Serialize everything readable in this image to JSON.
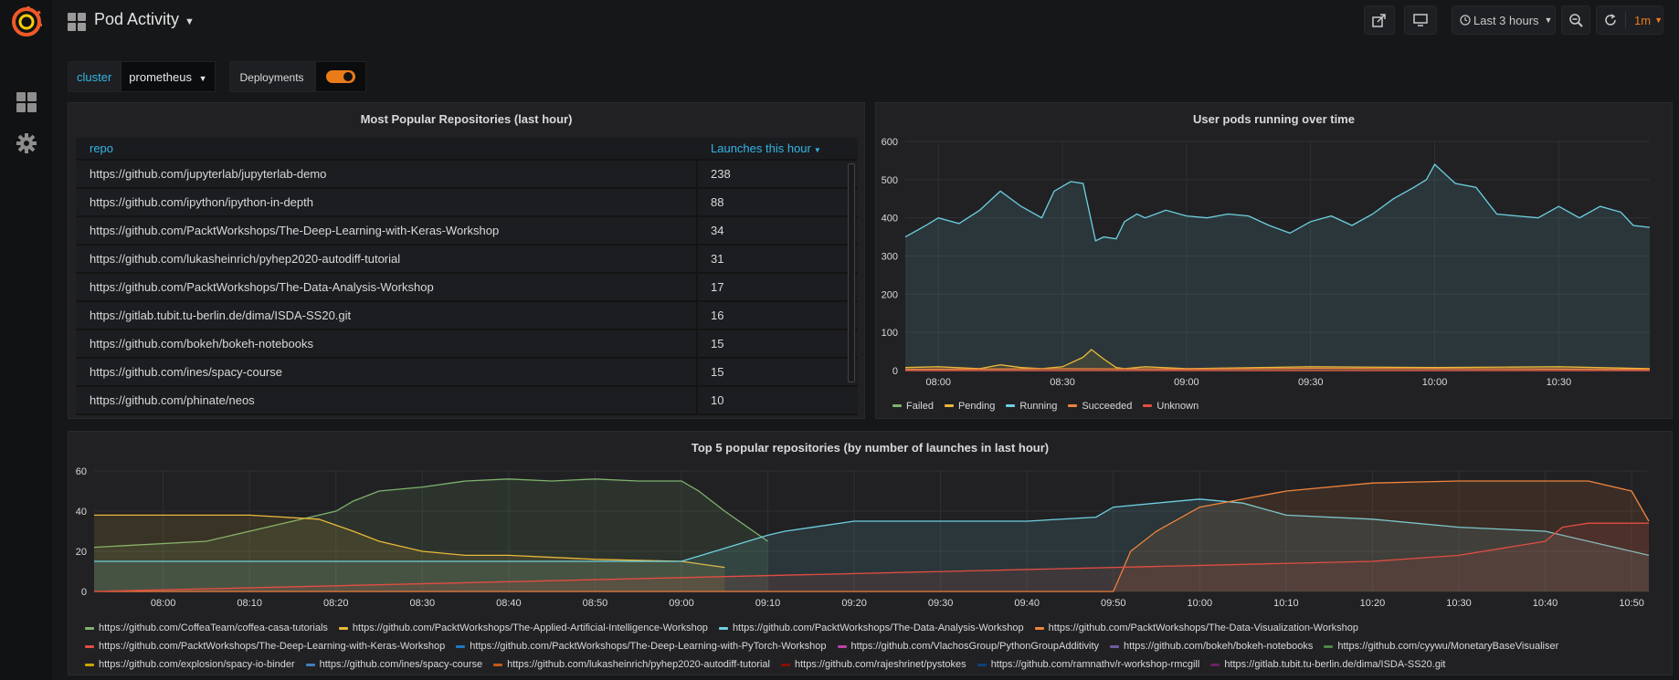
{
  "dashboard": {
    "title": "Pod Activity"
  },
  "toolbar": {
    "time_range": "Last 3 hours",
    "refresh_interval": "1m"
  },
  "variables": {
    "cluster_label": "cluster",
    "cluster_value": "prometheus",
    "deployments_label": "Deployments",
    "deployments_enabled": true
  },
  "colors": {
    "accent": "#33b5e5",
    "orange": "#eb7b18",
    "bg": "#161719",
    "panel": "#212124"
  },
  "repo_table": {
    "title": "Most Popular Repositories (last hour)",
    "col_repo": "repo",
    "col_launches": "Launches this hour",
    "rows": [
      {
        "repo": "https://github.com/jupyterlab/jupyterlab-demo",
        "launches": "238"
      },
      {
        "repo": "https://github.com/ipython/ipython-in-depth",
        "launches": "88"
      },
      {
        "repo": "https://github.com/PacktWorkshops/The-Deep-Learning-with-Keras-Workshop",
        "launches": "34"
      },
      {
        "repo": "https://github.com/lukasheinrich/pyhep2020-autodiff-tutorial",
        "launches": "31"
      },
      {
        "repo": "https://github.com/PacktWorkshops/The-Data-Analysis-Workshop",
        "launches": "17"
      },
      {
        "repo": "https://gitlab.tubit.tu-berlin.de/dima/ISDA-SS20.git",
        "launches": "16"
      },
      {
        "repo": "https://github.com/bokeh/bokeh-notebooks",
        "launches": "15"
      },
      {
        "repo": "https://github.com/ines/spacy-course",
        "launches": "15"
      },
      {
        "repo": "https://github.com/phinate/neos",
        "launches": "10"
      }
    ]
  },
  "chart_data": [
    {
      "type": "area",
      "title": "User pods running over time",
      "ylim": [
        0,
        600
      ],
      "y_ticks": [
        "600",
        "500",
        "400",
        "300",
        "200",
        "100",
        "0"
      ],
      "x_ticks": [
        "08:00",
        "08:30",
        "09:00",
        "09:30",
        "10:00",
        "10:30"
      ],
      "x_minutes": [
        0,
        30,
        60,
        90,
        120,
        150
      ],
      "x_range_minutes": [
        -8,
        172
      ],
      "legend": [
        "Failed",
        "Pending",
        "Running",
        "Succeeded",
        "Unknown"
      ],
      "series": [
        {
          "name": "Running",
          "color": "#6ed0e0",
          "x": [
            -8,
            -3,
            0,
            5,
            10,
            15,
            20,
            25,
            28,
            32,
            35,
            38,
            40,
            43,
            45,
            48,
            50,
            55,
            60,
            65,
            70,
            75,
            80,
            85,
            90,
            95,
            100,
            105,
            110,
            115,
            118,
            120,
            123,
            125,
            130,
            135,
            140,
            145,
            150,
            155,
            160,
            165,
            168,
            172
          ],
          "values": [
            350,
            380,
            400,
            385,
            420,
            470,
            430,
            400,
            470,
            495,
            490,
            340,
            350,
            345,
            390,
            410,
            400,
            420,
            405,
            400,
            410,
            405,
            380,
            360,
            390,
            405,
            380,
            410,
            450,
            480,
            500,
            540,
            510,
            490,
            480,
            410,
            405,
            400,
            430,
            400,
            430,
            415,
            380,
            375
          ]
        },
        {
          "name": "Pending",
          "color": "#eab839",
          "x": [
            -8,
            0,
            10,
            15,
            20,
            25,
            30,
            35,
            37,
            40,
            43,
            45,
            50,
            60,
            90,
            120,
            150,
            172
          ],
          "values": [
            8,
            10,
            5,
            15,
            8,
            5,
            10,
            35,
            55,
            30,
            8,
            5,
            10,
            5,
            10,
            8,
            10,
            5
          ]
        },
        {
          "name": "Succeeded",
          "color": "#ef843c",
          "x": [
            -8,
            30,
            60,
            90,
            120,
            150,
            172
          ],
          "values": [
            3,
            5,
            4,
            6,
            5,
            4,
            3
          ]
        },
        {
          "name": "Failed",
          "color": "#7eb26d",
          "x": [
            -8,
            172
          ],
          "values": [
            0,
            0
          ]
        },
        {
          "name": "Unknown",
          "color": "#e24d42",
          "x": [
            -8,
            172
          ],
          "values": [
            0,
            0
          ]
        }
      ]
    },
    {
      "type": "area",
      "title": "Top 5 popular repositories (by number of launches in last hour)",
      "ylim": [
        0,
        60
      ],
      "y_ticks": [
        "60",
        "40",
        "20",
        "0"
      ],
      "x_ticks": [
        "08:00",
        "08:10",
        "08:20",
        "08:30",
        "08:40",
        "08:50",
        "09:00",
        "09:10",
        "09:20",
        "09:30",
        "09:40",
        "09:50",
        "10:00",
        "10:10",
        "10:20",
        "10:30",
        "10:40",
        "10:50"
      ],
      "x_minutes": [
        0,
        10,
        20,
        30,
        40,
        50,
        60,
        70,
        80,
        90,
        100,
        110,
        120,
        130,
        140,
        150,
        160,
        170
      ],
      "x_range_minutes": [
        -8,
        172
      ],
      "series": [
        {
          "name": "https://github.com/CoffeaTeam/coffea-casa-tutorials",
          "color": "#7eb26d",
          "x": [
            -8,
            5,
            10,
            15,
            20,
            22,
            25,
            30,
            35,
            40,
            45,
            50,
            55,
            60,
            62,
            65,
            70
          ],
          "values": [
            22,
            25,
            30,
            35,
            40,
            45,
            50,
            52,
            55,
            56,
            55,
            56,
            55,
            55,
            50,
            40,
            25
          ]
        },
        {
          "name": "https://github.com/PacktWorkshops/The-Applied-Artificial-Intelligence-Workshop",
          "color": "#eab839",
          "x": [
            -8,
            0,
            10,
            18,
            22,
            25,
            30,
            35,
            40,
            50,
            60,
            65
          ],
          "values": [
            38,
            38,
            38,
            36,
            30,
            25,
            20,
            18,
            18,
            16,
            15,
            12
          ]
        },
        {
          "name": "https://github.com/PacktWorkshops/The-Data-Analysis-Workshop",
          "color": "#6ed0e0",
          "x": [
            -8,
            60,
            70,
            72,
            80,
            100,
            108,
            110,
            115,
            120,
            125,
            130,
            140,
            150,
            160,
            165,
            172
          ],
          "values": [
            15,
            15,
            28,
            30,
            35,
            35,
            37,
            42,
            44,
            46,
            44,
            38,
            36,
            32,
            30,
            25,
            18
          ]
        },
        {
          "name": "https://github.com/PacktWorkshops/The-Data-Visualization-Workshop",
          "color": "#ef843c",
          "x": [
            -8,
            110,
            112,
            115,
            120,
            130,
            140,
            150,
            165,
            170,
            172
          ],
          "values": [
            0,
            0,
            20,
            30,
            42,
            50,
            54,
            55,
            55,
            50,
            35
          ]
        },
        {
          "name": "https://github.com/PacktWorkshops/The-Deep-Learning-with-Keras-Workshop",
          "color": "#e24d42",
          "x": [
            -8,
            140,
            150,
            160,
            162,
            165,
            172
          ],
          "values": [
            0,
            15,
            18,
            25,
            32,
            34,
            34
          ]
        }
      ]
    }
  ],
  "bottom_legend": [
    {
      "name": "https://github.com/CoffeaTeam/coffea-casa-tutorials",
      "color": "#7eb26d"
    },
    {
      "name": "https://github.com/PacktWorkshops/The-Applied-Artificial-Intelligence-Workshop",
      "color": "#eab839"
    },
    {
      "name": "https://github.com/PacktWorkshops/The-Data-Analysis-Workshop",
      "color": "#6ed0e0"
    },
    {
      "name": "https://github.com/PacktWorkshops/The-Data-Visualization-Workshop",
      "color": "#ef843c"
    },
    {
      "name": "https://github.com/PacktWorkshops/The-Deep-Learning-with-Keras-Workshop",
      "color": "#e24d42"
    },
    {
      "name": "https://github.com/PacktWorkshops/The-Deep-Learning-with-PyTorch-Workshop",
      "color": "#1f78c1"
    },
    {
      "name": "https://github.com/VlachosGroup/PythonGroupAdditivity",
      "color": "#ba43a9"
    },
    {
      "name": "https://github.com/bokeh/bokeh-notebooks",
      "color": "#705da0"
    },
    {
      "name": "https://github.com/cyywu/MonetaryBaseVisualiser",
      "color": "#508642"
    },
    {
      "name": "https://github.com/explosion/spacy-io-binder",
      "color": "#cca300"
    },
    {
      "name": "https://github.com/ines/spacy-course",
      "color": "#447ebc"
    },
    {
      "name": "https://github.com/lukasheinrich/pyhep2020-autodiff-tutorial",
      "color": "#c15c17"
    },
    {
      "name": "https://github.com/rajeshrinet/pystokes",
      "color": "#890f02"
    },
    {
      "name": "https://github.com/ramnathv/r-workshop-rmcgill",
      "color": "#0a437c"
    },
    {
      "name": "https://gitlab.tubit.tu-berlin.de/dima/ISDA-SS20.git",
      "color": "#6d1f62"
    }
  ]
}
